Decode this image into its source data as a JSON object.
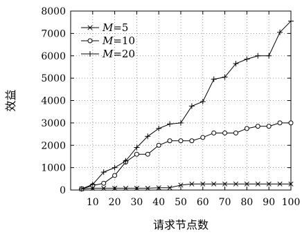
{
  "chart_data": {
    "type": "line",
    "xlabel": "请求节点数",
    "ylabel": "效益",
    "xlim": [
      0,
      100
    ],
    "ylim": [
      0,
      8000
    ],
    "xticks": [
      10,
      20,
      30,
      40,
      50,
      60,
      70,
      80,
      90,
      100
    ],
    "yticks": [
      0,
      1000,
      2000,
      3000,
      4000,
      5000,
      6000,
      7000,
      8000
    ],
    "grid": true,
    "legend_position": "top-left",
    "x": [
      5,
      10,
      15,
      20,
      25,
      30,
      35,
      40,
      45,
      50,
      55,
      60,
      65,
      70,
      75,
      80,
      85,
      90,
      95,
      100
    ],
    "series": [
      {
        "name": "M=5",
        "label_var": "M",
        "label_value": "=5",
        "marker": "x",
        "values": [
          50,
          80,
          80,
          80,
          80,
          80,
          80,
          100,
          100,
          220,
          270,
          270,
          270,
          270,
          270,
          270,
          270,
          270,
          270,
          270
        ]
      },
      {
        "name": "M=10",
        "label_var": "M",
        "label_value": "=10",
        "marker": "circle",
        "values": [
          50,
          200,
          300,
          650,
          1250,
          1600,
          1600,
          2000,
          2200,
          2200,
          2200,
          2350,
          2550,
          2550,
          2550,
          2750,
          2850,
          2850,
          3000,
          3000
        ]
      },
      {
        "name": "M=20",
        "label_var": "M",
        "label_value": "=20",
        "marker": "plus",
        "values": [
          50,
          250,
          800,
          1000,
          1300,
          1900,
          2400,
          2750,
          2950,
          3000,
          3750,
          3950,
          4950,
          5050,
          5650,
          5850,
          6000,
          6000,
          7050,
          7550
        ]
      }
    ]
  }
}
